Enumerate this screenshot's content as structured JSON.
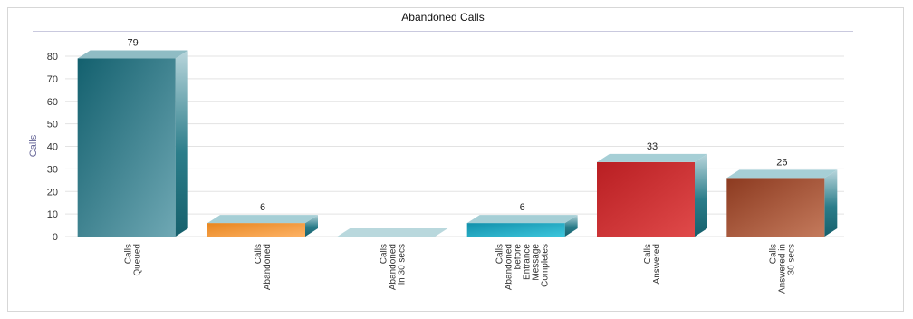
{
  "chart_data": {
    "type": "bar",
    "title": "Abandoned Calls",
    "ylabel": "Calls",
    "xlabel": "",
    "ylim": [
      0,
      80
    ],
    "yticks": [
      0,
      10,
      20,
      30,
      40,
      50,
      60,
      70,
      80
    ],
    "grid": true,
    "legend": "none",
    "categories": [
      "Calls Queued",
      "Calls Abandoned",
      "Calls Abandoned in 30 secs",
      "Calls Abandoned before Entrance Message Completes",
      "Calls Answered",
      "Calls Answered in 30 secs"
    ],
    "category_lines": [
      [
        "Calls",
        "Queued"
      ],
      [
        "Calls",
        "Abandoned"
      ],
      [
        "Calls",
        "Abandoned",
        "in 30 secs"
      ],
      [
        "Calls",
        "Abandoned",
        "before",
        "Entrance",
        "Message",
        "Completes"
      ],
      [
        "Calls",
        "Answered"
      ],
      [
        "Calls",
        "Answered in",
        "30 secs"
      ]
    ],
    "values": [
      79,
      6,
      0,
      6,
      33,
      26
    ],
    "data_labels": [
      "79",
      "6",
      "",
      "6",
      "33",
      "26"
    ],
    "colors": [
      {
        "front_a": "#13606e",
        "front_b": "#6fa8b4",
        "side": "#2b7d8a",
        "top": "#8fbcc4"
      },
      {
        "front_a": "#e8861f",
        "front_b": "#fdb266",
        "side": "#2b7d8a",
        "top": "#a6cfd6"
      },
      {
        "front_a": "#5fa2ad",
        "front_b": "#a9cdd3",
        "side": "#2b7d8a",
        "top": "#b9d8dd"
      },
      {
        "front_a": "#1290ab",
        "front_b": "#3cc6dc",
        "side": "#2b7d8a",
        "top": "#a6cfd6"
      },
      {
        "front_a": "#b81e22",
        "front_b": "#e04a4a",
        "side": "#2b7d8a",
        "top": "#a6cfd6"
      },
      {
        "front_a": "#8c3a20",
        "front_b": "#c47a5c",
        "side": "#2b7d8a",
        "top": "#a6cfd6"
      }
    ]
  }
}
